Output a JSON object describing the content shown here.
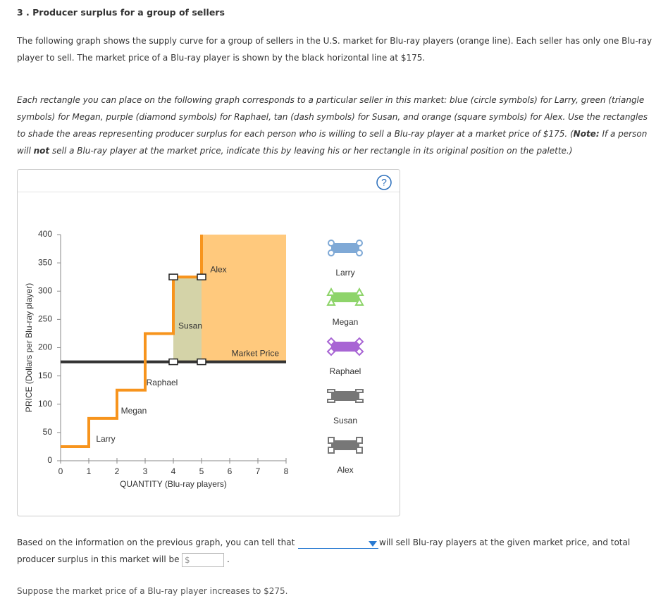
{
  "question": {
    "title": "3 . Producer surplus for a group of sellers",
    "intro": "The following graph shows the supply curve for a group of sellers in the U.S. market for Blu-ray players (orange line). Each seller has only one Blu-ray player to sell. The market price of a Blu-ray player is shown by the black horizontal line at $175.",
    "instructions": [
      "Each rectangle you can place on the following graph corresponds to a particular seller in this market: blue (circle symbols) for Larry, green (triangle symbols) for Megan, purple (diamond symbols) for Raphael, tan (dash symbols) for Susan, and orange (square symbols) for Alex. Use the rectangles to shade the areas representing producer surplus for each person who is willing to sell a Blu-ray player at a market price of $175. (",
      "Note:",
      " If a person will ",
      "not",
      " sell a Blu-ray player at the market price, indicate this by leaving his or her rectangle in its original position on the palette.)"
    ],
    "help_icon": "?",
    "answer_line1_before": "Based on the information on the previous graph, you can tell that",
    "answer_line1_after": "will sell Blu-ray players at the given market price, and total",
    "answer_line2": "producer surplus in this market will be",
    "currency_prefix": "$",
    "answer_end": ".",
    "next_question": "Suppose the market price of a Blu-ray player increases to $275."
  },
  "chart_data": {
    "type": "step",
    "x_label": "QUANTITY (Blu-ray players)",
    "y_label": "PRICE (Dollars per Blu-ray player)",
    "xlim": [
      0,
      8
    ],
    "xticks": [
      0,
      1,
      2,
      3,
      4,
      5,
      6,
      7,
      8
    ],
    "ylim": [
      0,
      400
    ],
    "yticks": [
      0,
      50,
      100,
      150,
      200,
      250,
      300,
      350,
      400
    ],
    "supply_curve": {
      "color": "#f7941d",
      "x": [
        0,
        1,
        1,
        2,
        2,
        3,
        3,
        4,
        4,
        5,
        5
      ],
      "y": [
        25,
        25,
        75,
        75,
        125,
        125,
        225,
        225,
        325,
        325,
        400
      ]
    },
    "step_labels": [
      "Larry",
      "Megan",
      "Raphael",
      "Susan",
      "Alex"
    ],
    "market_price": {
      "label": "Market Price",
      "value": 175,
      "color": "#333333"
    },
    "placed_rectangles": [
      {
        "color": "#d4d3a8",
        "x": [
          4,
          5
        ],
        "y": [
          175,
          325
        ]
      },
      {
        "color": "#ffc97d",
        "x": [
          5,
          8
        ],
        "y": [
          175,
          400
        ]
      }
    ],
    "palette": [
      {
        "name": "Larry",
        "color": "#7fa9d6",
        "symbol": "circle"
      },
      {
        "name": "Megan",
        "color": "#8ed46a",
        "symbol": "triangle"
      },
      {
        "name": "Raphael",
        "color": "#a865d4",
        "symbol": "diamond"
      },
      {
        "name": "Susan",
        "color": "#777777",
        "symbol": "dash"
      },
      {
        "name": "Alex",
        "color": "#777777",
        "symbol": "square"
      }
    ]
  }
}
